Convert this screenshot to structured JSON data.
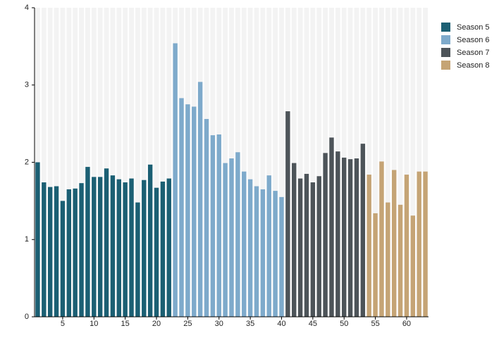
{
  "chart_data": {
    "type": "bar",
    "xlim": [
      0.5,
      63.5
    ],
    "xticks": [
      5,
      10,
      15,
      20,
      25,
      30,
      35,
      40,
      45,
      50,
      55,
      60
    ],
    "ylim": [
      0,
      4
    ],
    "yticks": [
      0,
      1,
      2,
      3,
      4
    ],
    "series": [
      {
        "name": "Season 5",
        "color": "#1b5f73",
        "x": [
          1,
          2,
          3,
          4,
          5,
          6,
          7,
          8,
          9,
          10,
          11,
          12,
          13,
          14,
          15,
          16,
          17,
          18,
          19,
          20,
          21,
          22
        ],
        "values": [
          2.0,
          1.74,
          1.68,
          1.69,
          1.5,
          1.65,
          1.66,
          1.73,
          1.94,
          1.81,
          1.81,
          1.92,
          1.83,
          1.78,
          1.74,
          1.79,
          1.48,
          1.77,
          1.97,
          1.67,
          1.75,
          1.79
        ]
      },
      {
        "name": "Season 6",
        "color": "#7eaacb",
        "x": [
          23,
          24,
          25,
          26,
          27,
          28,
          29,
          30,
          31,
          32,
          33,
          34,
          35,
          36,
          37,
          38,
          39,
          40
        ],
        "values": [
          3.54,
          2.83,
          2.75,
          2.72,
          3.04,
          2.56,
          2.35,
          2.36,
          1.99,
          2.05,
          2.13,
          1.88,
          1.78,
          1.69,
          1.65,
          1.83,
          1.63,
          1.55
        ]
      },
      {
        "name": "Season 7",
        "color": "#4d5459",
        "x": [
          41,
          42,
          43,
          44,
          45,
          46,
          47,
          48,
          49,
          50,
          51,
          52,
          53
        ],
        "values": [
          2.66,
          1.99,
          1.79,
          1.85,
          1.74,
          1.82,
          2.12,
          2.32,
          2.14,
          2.06,
          2.04,
          2.05,
          2.24
        ]
      },
      {
        "name": "Season 8",
        "color": "#c5a475",
        "x": [
          54,
          55,
          56,
          57,
          58,
          59,
          60,
          61,
          62,
          63
        ],
        "values": [
          1.84,
          1.34,
          2.01,
          1.48,
          1.9,
          1.45,
          1.84,
          1.31,
          1.88,
          1.88
        ]
      }
    ]
  }
}
